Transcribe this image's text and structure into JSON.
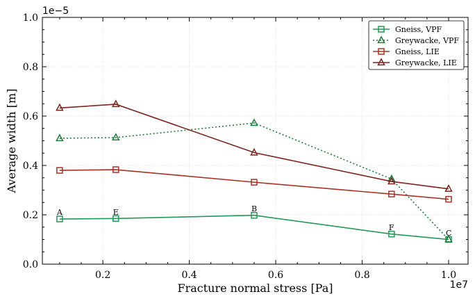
{
  "chart_data": {
    "type": "line",
    "title": "",
    "xlabel": "Fracture normal stress [Pa]",
    "ylabel": "Average width [m]",
    "x_offset_label": "1e7",
    "y_offset_label": "1e−5",
    "xlim": [
      0.06,
      1.045
    ],
    "ylim": [
      0.0,
      1.0
    ],
    "xticks": [
      0.2,
      0.4,
      0.6,
      0.8,
      1.0
    ],
    "xtick_labels": [
      "0.2",
      "0.4",
      "0.6",
      "0.8",
      "1.0"
    ],
    "yticks": [
      0.0,
      0.2,
      0.4,
      0.6,
      0.8,
      1.0
    ],
    "ytick_labels": [
      "0.0",
      "0.2",
      "0.4",
      "0.6",
      "0.8",
      "1.0"
    ],
    "grid": true,
    "legend_position": "top-right",
    "x": [
      0.1,
      0.23,
      0.55,
      0.868,
      1.0
    ],
    "series": [
      {
        "name": "Gneiss, VPF",
        "color": "#229954",
        "marker": "square",
        "linestyle": "solid",
        "values": [
          0.183,
          0.185,
          0.198,
          0.122,
          0.1
        ]
      },
      {
        "name": "Greywacke, VPF",
        "color": "#1e7b3c",
        "marker": "triangle",
        "linestyle": "dotted",
        "values": [
          0.51,
          0.513,
          0.572,
          0.345,
          0.1
        ]
      },
      {
        "name": "Gneiss, LIE",
        "color": "#a93226",
        "marker": "square",
        "linestyle": "solid",
        "values": [
          0.38,
          0.383,
          0.332,
          0.284,
          0.263
        ]
      },
      {
        "name": "Greywacke, LIE",
        "color": "#7b241c",
        "marker": "triangle",
        "linestyle": "solid",
        "values": [
          0.633,
          0.648,
          0.452,
          0.335,
          0.305
        ]
      }
    ],
    "annotations": [
      {
        "text": "A",
        "x": 0.1,
        "y": 0.2
      },
      {
        "text": "E",
        "x": 0.23,
        "y": 0.2
      },
      {
        "text": "B",
        "x": 0.55,
        "y": 0.214
      },
      {
        "text": "F",
        "x": 0.868,
        "y": 0.138
      },
      {
        "text": "C",
        "x": 1.0,
        "y": 0.116
      }
    ]
  }
}
